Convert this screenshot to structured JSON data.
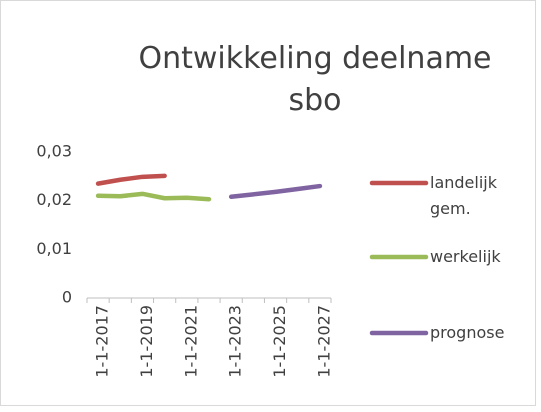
{
  "chart_data": {
    "type": "line",
    "title": "Ontwikkeling deelname sbo",
    "categories": [
      "1-1-2017",
      null,
      "1-1-2019",
      null,
      "1-1-2021",
      null,
      "1-1-2023",
      null,
      "1-1-2025",
      null,
      "1-1-2027"
    ],
    "series": [
      {
        "name": "landelijk gem.",
        "color": "#c0504d",
        "values": [
          0.0235,
          0.0243,
          0.0249,
          0.0251,
          null,
          null,
          null,
          null,
          null,
          null,
          null
        ]
      },
      {
        "name": "werkelijk",
        "color": "#9bbb59",
        "values": [
          0.021,
          0.0209,
          0.0214,
          0.0205,
          0.0206,
          0.0203,
          null,
          null,
          null,
          null,
          null
        ]
      },
      {
        "name": "prognose",
        "color": "#8064a2",
        "values": [
          null,
          null,
          null,
          null,
          null,
          null,
          0.0208,
          0.0213,
          0.0218,
          0.0224,
          0.023
        ]
      }
    ],
    "ylim": [
      0,
      0.03
    ],
    "yticks": [
      {
        "value": 0,
        "label": "0"
      },
      {
        "value": 0.01,
        "label": "0,01"
      },
      {
        "value": 0.02,
        "label": "0,02"
      },
      {
        "value": 0.03,
        "label": "0,03"
      }
    ],
    "grid": false,
    "legend": "right"
  }
}
